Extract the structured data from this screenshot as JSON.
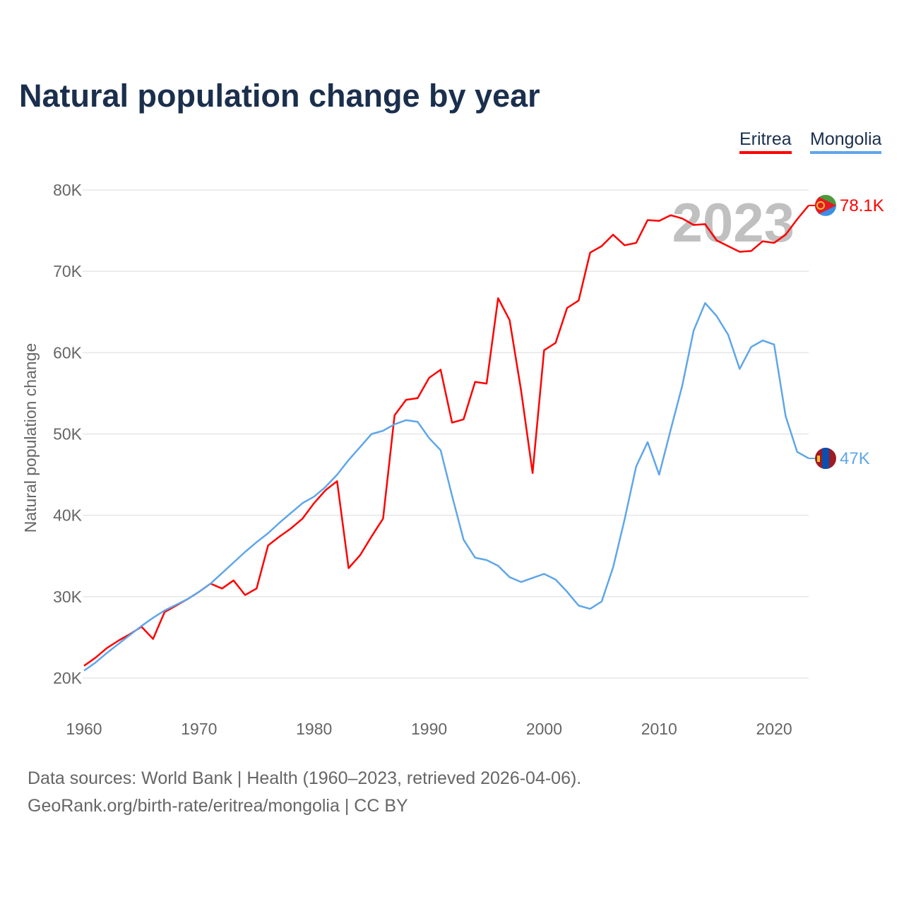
{
  "title": "Natural population change by year",
  "legend": [
    {
      "label": "Eritrea",
      "color": "#ff0000"
    },
    {
      "label": "Mongolia",
      "color": "#5fa6ea"
    }
  ],
  "footer": {
    "source": "Data sources: World Bank | Health (1960–2023, retrieved 2026-04-06).",
    "url": "GeoRank.org/birth-rate/eritrea/mongolia | CC BY"
  },
  "chart_data": {
    "type": "line",
    "title": "Natural population change by year",
    "xlabel": "",
    "ylabel": "Natural population change",
    "xlim": [
      1960,
      2023
    ],
    "ylim": [
      20000,
      80000
    ],
    "x_ticks": [
      1960,
      1970,
      1980,
      1990,
      2000,
      2010,
      2020
    ],
    "y_ticks": [
      20000,
      30000,
      40000,
      50000,
      60000,
      70000,
      80000
    ],
    "y_tick_labels": [
      "20K",
      "30K",
      "40K",
      "50K",
      "60K",
      "70K",
      "80K"
    ],
    "grid": true,
    "legend_position": "top-right",
    "year_watermark": "2023",
    "x": [
      1960,
      1961,
      1962,
      1963,
      1964,
      1965,
      1966,
      1967,
      1968,
      1969,
      1970,
      1971,
      1972,
      1973,
      1974,
      1975,
      1976,
      1977,
      1978,
      1979,
      1980,
      1981,
      1982,
      1983,
      1984,
      1985,
      1986,
      1987,
      1988,
      1989,
      1990,
      1991,
      1992,
      1993,
      1994,
      1995,
      1996,
      1997,
      1998,
      1999,
      2000,
      2001,
      2002,
      2003,
      2004,
      2005,
      2006,
      2007,
      2008,
      2009,
      2010,
      2011,
      2012,
      2013,
      2014,
      2015,
      2016,
      2017,
      2018,
      2019,
      2020,
      2021,
      2022,
      2023
    ],
    "series": [
      {
        "name": "Eritrea",
        "color": "#ff0000",
        "end_label": "78.1K",
        "values": [
          21500,
          22500,
          23700,
          24600,
          25400,
          26300,
          24800,
          28100,
          28900,
          29700,
          30600,
          31600,
          31000,
          32000,
          30200,
          31000,
          36300,
          37400,
          38400,
          39600,
          41500,
          43100,
          44200,
          33500,
          35100,
          37400,
          39600,
          52300,
          54200,
          54400,
          56900,
          57900,
          51400,
          51800,
          56400,
          56200,
          66700,
          64000,
          55300,
          45200,
          60300,
          61200,
          65500,
          66400,
          72300,
          73100,
          74500,
          73200,
          73500,
          76300,
          76200,
          76900,
          76500,
          75700,
          75800,
          73800,
          73100,
          72400,
          72500,
          73700,
          73500,
          74500,
          76400,
          78100
        ]
      },
      {
        "name": "Mongolia",
        "color": "#5fa6ea",
        "end_label": "47K",
        "values": [
          20900,
          21900,
          23100,
          24200,
          25300,
          26400,
          27400,
          28300,
          29000,
          29700,
          30600,
          31600,
          32900,
          34200,
          35500,
          36700,
          37800,
          39100,
          40300,
          41500,
          42300,
          43500,
          45000,
          46800,
          48400,
          50000,
          50400,
          51200,
          51700,
          51500,
          49500,
          48000,
          42400,
          37000,
          34800,
          34500,
          33800,
          32400,
          31800,
          32300,
          32800,
          32100,
          30600,
          28900,
          28500,
          29400,
          33600,
          39500,
          46000,
          49000,
          45000,
          50500,
          55900,
          62700,
          66100,
          64500,
          62200,
          58000,
          60700,
          61500,
          61000,
          52200,
          47800,
          47000
        ]
      }
    ]
  }
}
